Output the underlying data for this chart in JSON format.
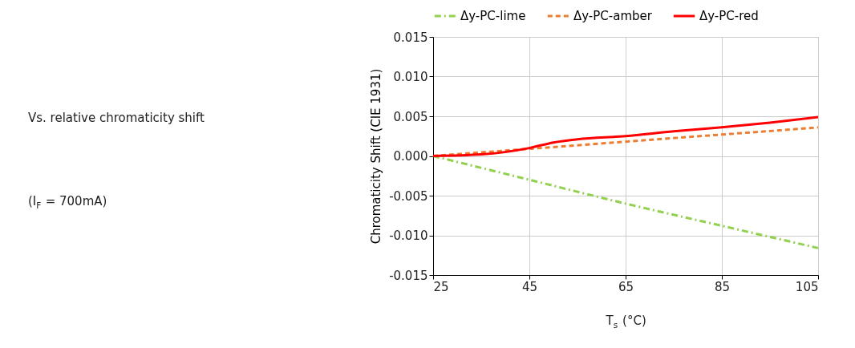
{
  "chart_data": {
    "type": "line",
    "xlabel": "T$_{s}$ (°C)",
    "ylabel": "Chromaticity Shift (CIE 1931)",
    "annotations": [
      "Vs. relative chromaticity shift",
      "(I$_{F}$ = 700mA)"
    ],
    "x": [
      25,
      35,
      45,
      50,
      55,
      65,
      75,
      85,
      95,
      105
    ],
    "series": [
      {
        "name": "Δy-PC-lime",
        "color": "#92d050",
        "line_style": "dashdot",
        "x": [
          25,
          45,
          65,
          85,
          105
        ],
        "values": [
          0,
          -0.003,
          -0.006,
          -0.0088,
          -0.0116
        ]
      },
      {
        "name": "Δy-PC-amber",
        "color": "#ed7d31",
        "line_style": "dashed",
        "x": [
          25,
          45,
          65,
          85,
          105
        ],
        "values": [
          0,
          0.0009,
          0.0018,
          0.0027,
          0.0036
        ]
      },
      {
        "name": "Δy-PC-red",
        "color": "#ff0000",
        "line_style": "solid",
        "values": [
          0,
          0.0002,
          0.001,
          0.0017,
          0.0021,
          0.0025,
          0.0031,
          0.0036,
          0.0042,
          0.0049
        ]
      }
    ],
    "xlim": [
      25,
      105
    ],
    "xticks": [
      25,
      45,
      65,
      85,
      105
    ],
    "ylim": [
      -0.015,
      0.015
    ],
    "yticks": [
      {
        "value": -0.015,
        "label": "-0.015"
      },
      {
        "value": -0.01,
        "label": "-0.010"
      },
      {
        "value": -0.005,
        "label": "-0.005"
      },
      {
        "value": 0,
        "label": "0.000"
      },
      {
        "value": 0.005,
        "label": "0.005"
      },
      {
        "value": 0.01,
        "label": "0.010"
      },
      {
        "value": 0.015,
        "label": "0.015"
      }
    ],
    "grid": true,
    "legend": "top",
    "marker": "none"
  }
}
